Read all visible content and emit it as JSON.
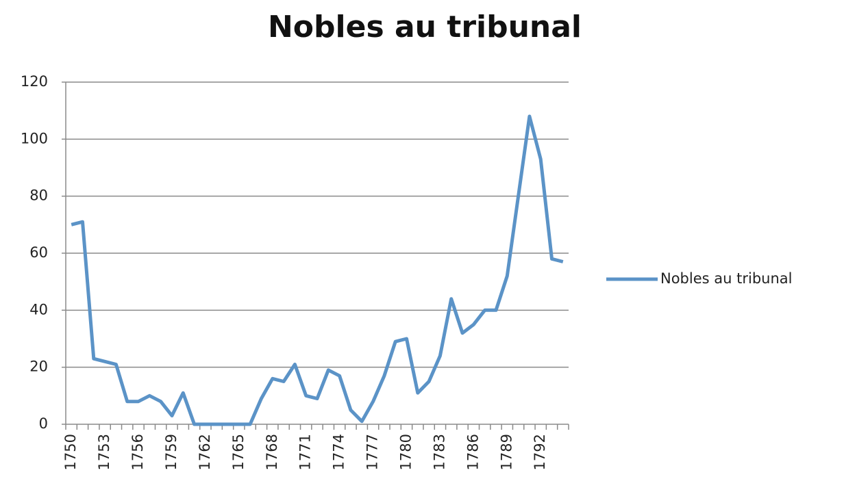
{
  "chart_data": {
    "type": "line",
    "title": "Nobles au tribunal",
    "categories": [
      "1750",
      null,
      null,
      "1753",
      null,
      null,
      "1756",
      null,
      null,
      "1759",
      null,
      null,
      "1762",
      null,
      null,
      "1765",
      null,
      null,
      "1768",
      null,
      null,
      "1771",
      null,
      null,
      "1774",
      null,
      null,
      "1777",
      null,
      null,
      "1780",
      null,
      null,
      "1783",
      null,
      null,
      "1786",
      null,
      null,
      "1789",
      null,
      null,
      "1792",
      null,
      null
    ],
    "series": [
      {
        "name": "Nobles au tribunal",
        "color": "#5b93c7",
        "values": [
          70,
          71,
          23,
          22,
          21,
          8,
          8,
          10,
          8,
          3,
          11,
          0,
          0,
          0,
          0,
          0,
          0,
          9,
          16,
          15,
          21,
          10,
          9,
          19,
          17,
          5,
          1,
          8,
          17,
          29,
          30,
          11,
          15,
          24,
          44,
          32,
          35,
          40,
          40,
          52,
          80,
          108,
          93,
          58,
          57
        ]
      }
    ],
    "ylim": [
      0,
      120
    ],
    "yticks": [
      0,
      20,
      40,
      60,
      80,
      100,
      120
    ],
    "grid": true,
    "legend": "right"
  }
}
